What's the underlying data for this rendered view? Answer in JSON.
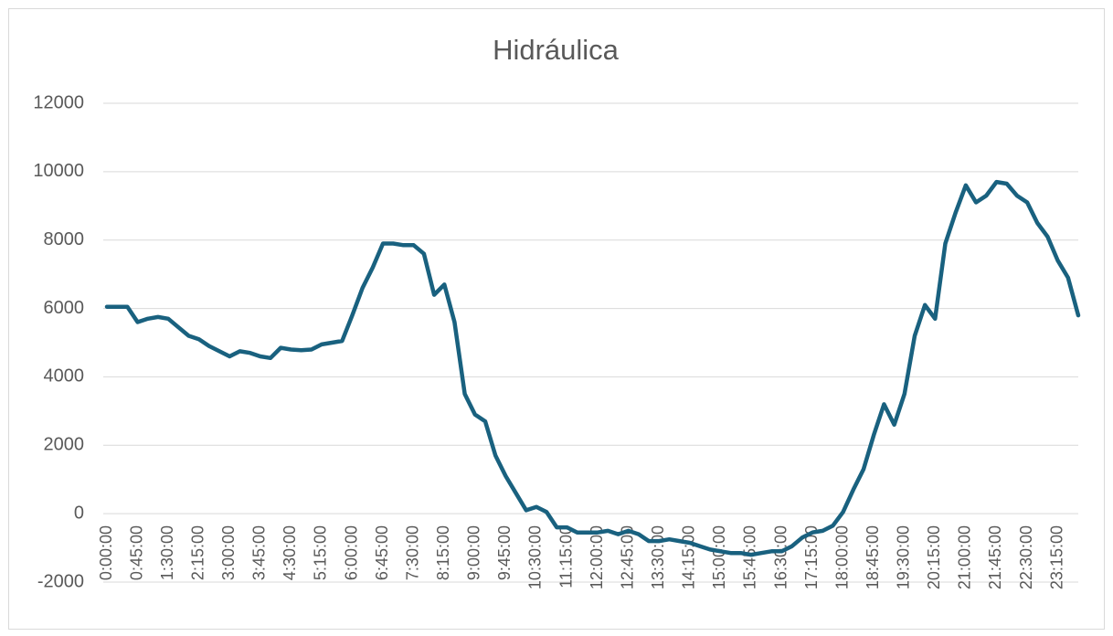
{
  "chart_data": {
    "type": "line",
    "title": "Hidráulica",
    "categories": [
      "0:00:00",
      null,
      null,
      "0:45:00",
      null,
      null,
      "1:30:00",
      null,
      null,
      "2:15:00",
      null,
      null,
      "3:00:00",
      null,
      null,
      "3:45:00",
      null,
      null,
      "4:30:00",
      null,
      null,
      "5:15:00",
      null,
      null,
      "6:00:00",
      null,
      null,
      "6:45:00",
      null,
      null,
      "7:30:00",
      null,
      null,
      "8:15:00",
      null,
      null,
      "9:00:00",
      null,
      null,
      "9:45:00",
      null,
      null,
      "10:30:00",
      null,
      null,
      "11:15:00",
      null,
      null,
      "12:00:00",
      null,
      null,
      "12:45:00",
      null,
      null,
      "13:30:00",
      null,
      null,
      "14:15:00",
      null,
      null,
      "15:00:00",
      null,
      null,
      "15:45:00",
      null,
      null,
      "16:30:00",
      null,
      null,
      "17:15:00",
      null,
      null,
      "18:00:00",
      null,
      null,
      "18:45:00",
      null,
      null,
      "19:30:00",
      null,
      null,
      "20:15:00",
      null,
      null,
      "21:00:00",
      null,
      null,
      "21:45:00",
      null,
      null,
      "22:30:00",
      null,
      null,
      "23:15:00",
      null,
      null
    ],
    "values": [
      6050,
      6050,
      6050,
      5600,
      5700,
      5750,
      5700,
      5450,
      5200,
      5100,
      4900,
      4750,
      4600,
      4750,
      4700,
      4600,
      4550,
      4850,
      4800,
      4780,
      4800,
      4950,
      5000,
      5050,
      5800,
      6600,
      7200,
      7900,
      7900,
      7850,
      7850,
      7600,
      6400,
      6700,
      5600,
      3500,
      2900,
      2700,
      1700,
      1100,
      600,
      100,
      200,
      50,
      -400,
      -400,
      -550,
      -550,
      -550,
      -500,
      -600,
      -500,
      -600,
      -800,
      -800,
      -750,
      -800,
      -850,
      -950,
      -1050,
      -1100,
      -1150,
      -1150,
      -1200,
      -1150,
      -1100,
      -1100,
      -950,
      -700,
      -550,
      -500,
      -350,
      50,
      700,
      1300,
      2300,
      3200,
      2600,
      3500,
      5200,
      6100,
      5700,
      7900,
      8800,
      9600,
      9100,
      9300,
      9700,
      9650,
      9300,
      9100,
      8500,
      8100,
      7400,
      6900,
      5800
    ],
    "color": "#19617f",
    "ylim": [
      -2000,
      12000
    ],
    "yticks": [
      -2000,
      0,
      2000,
      4000,
      6000,
      8000,
      10000,
      12000
    ],
    "grid": true
  }
}
